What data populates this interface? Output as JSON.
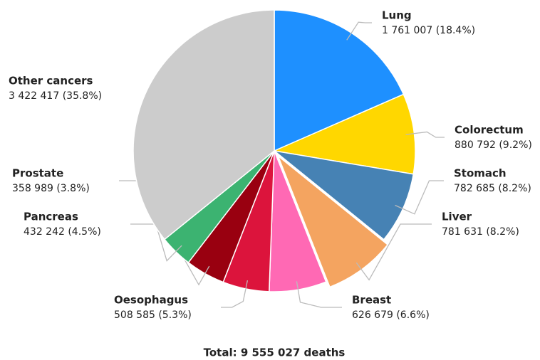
{
  "chart_data": {
    "type": "pie",
    "categories": [
      "Lung",
      "Colorectum",
      "Stomach",
      "Liver",
      "Breast",
      "Oesophagus",
      "Pancreas",
      "Prostate",
      "Other cancers"
    ],
    "values": [
      1761007,
      880792,
      782685,
      781631,
      626679,
      508585,
      432242,
      358989,
      3422417
    ],
    "value_labels": [
      "1 761 007 (18.4%)",
      "880 792 (9.2%)",
      "782 685 (8.2%)",
      "781 631 (8.2%)",
      "626 679 (6.6%)",
      "508 585 (5.3%)",
      "432 242 (4.5%)",
      "358 989 (3.8%)",
      "3 422 417 (35.8%)"
    ],
    "colors": [
      "#1e90ff",
      "#ffd700",
      "#4682b4",
      "#f4a460",
      "#ff69b4",
      "#dc143c",
      "#990010",
      "#3cb371",
      "#cccccc"
    ],
    "exploded": [
      "Liver"
    ],
    "footer": "Total: 9 555 027 deaths"
  }
}
